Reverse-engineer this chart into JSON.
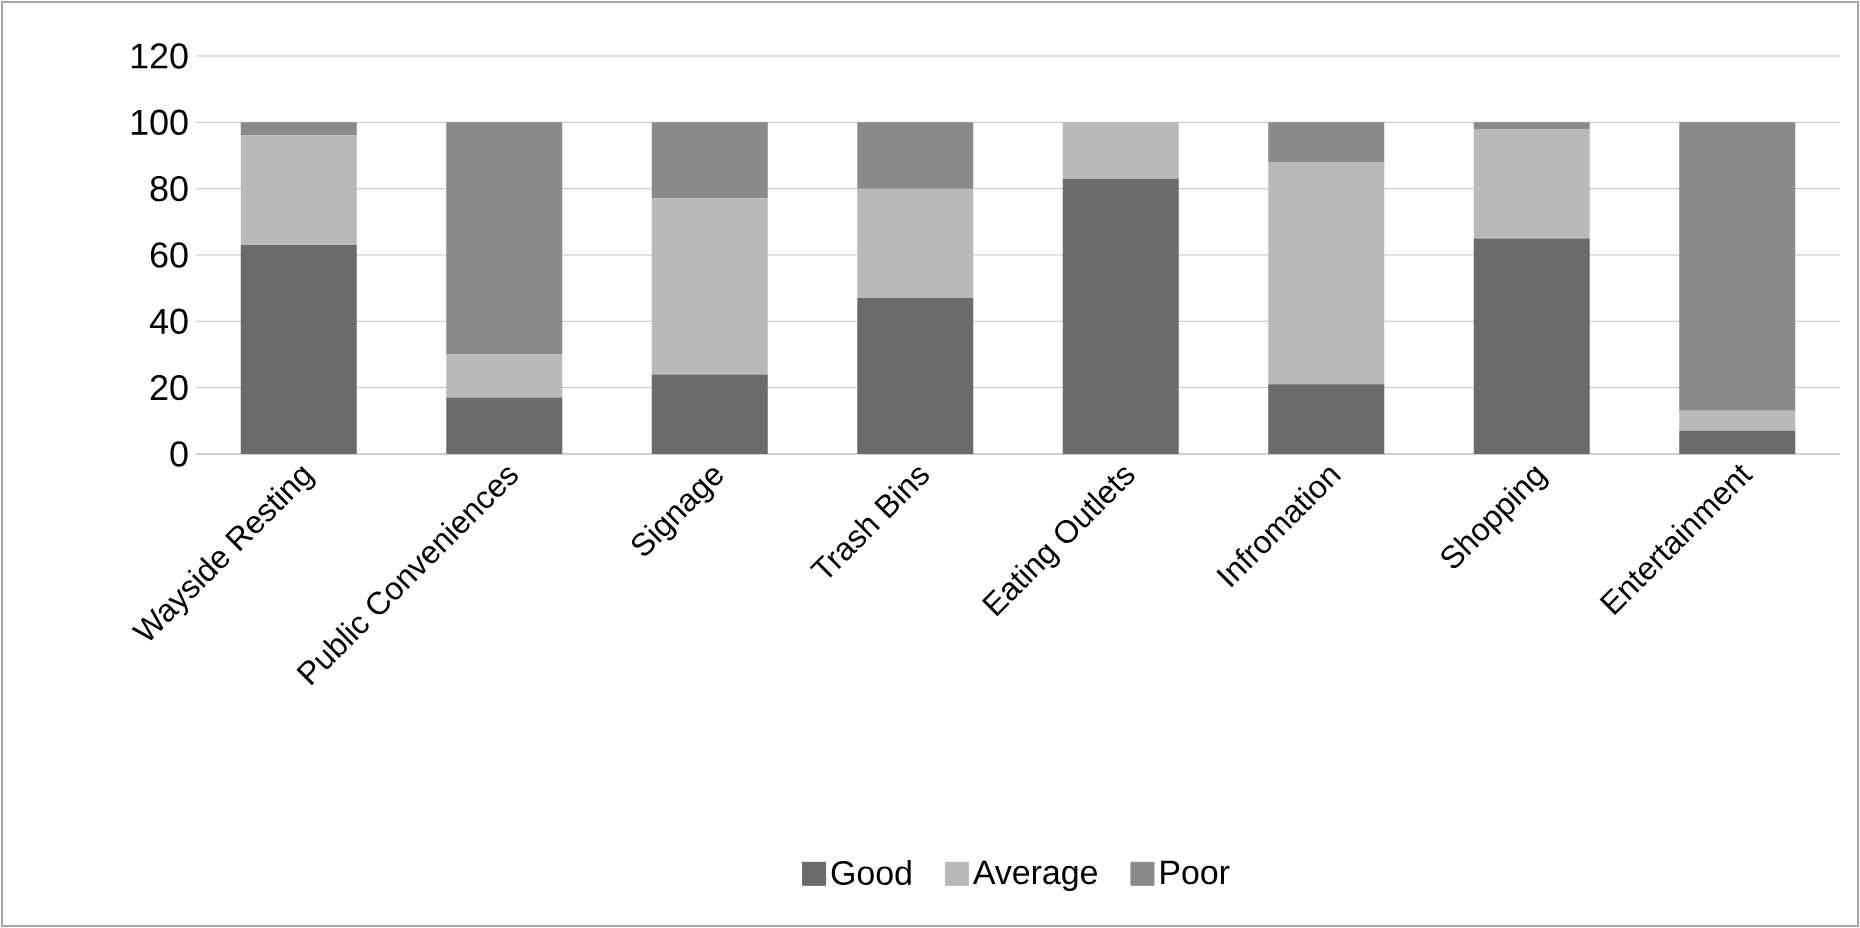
{
  "chart_data": {
    "type": "bar",
    "stacked": true,
    "categories": [
      "Wayside Resting",
      "Public Conveniences",
      "Signage",
      "Trash Bins",
      "Eating Outlets",
      "Infromation",
      "Shopping",
      "Entertainment"
    ],
    "series": [
      {
        "name": "Good",
        "color": "#6b6b6b",
        "values": [
          63,
          17,
          24,
          47,
          83,
          21,
          65,
          7
        ]
      },
      {
        "name": "Average",
        "color": "#b9b9b9",
        "values": [
          33,
          13,
          53,
          33,
          17,
          67,
          33,
          6
        ]
      },
      {
        "name": "Poor",
        "color": "#8a8a8a",
        "values": [
          4,
          70,
          23,
          20,
          0,
          12,
          2,
          87
        ]
      }
    ],
    "ylim": [
      0,
      120
    ],
    "yticks": [
      0,
      20,
      40,
      60,
      80,
      100,
      120
    ],
    "grid": "y",
    "legend": "bottom"
  }
}
